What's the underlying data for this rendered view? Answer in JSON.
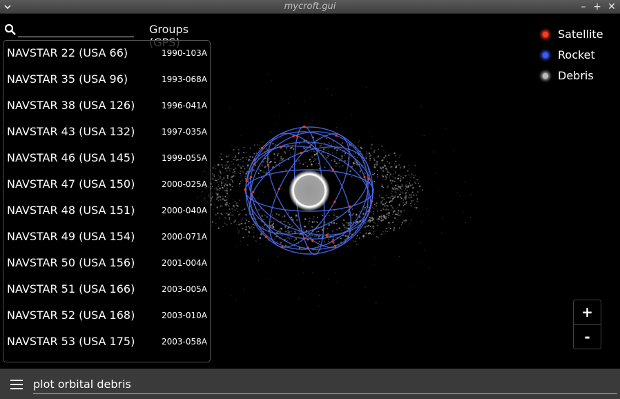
{
  "window": {
    "title": "mycroft.gui",
    "menu_icon": "chevron-down-icon",
    "minimize_glyph": "–",
    "maximize_glyph": "+",
    "close_glyph": "✕"
  },
  "search": {
    "value": "",
    "placeholder": "",
    "icon": "search-icon"
  },
  "group_label": "Groups (GPS)",
  "satellites": [
    {
      "name": "NAVSTAR 22 (USA 66)",
      "id": "1990-103A"
    },
    {
      "name": "NAVSTAR 35 (USA 96)",
      "id": "1993-068A"
    },
    {
      "name": "NAVSTAR 38 (USA 126)",
      "id": "1996-041A"
    },
    {
      "name": "NAVSTAR 43 (USA 132)",
      "id": "1997-035A"
    },
    {
      "name": "NAVSTAR 46 (USA 145)",
      "id": "1999-055A"
    },
    {
      "name": "NAVSTAR 47 (USA 150)",
      "id": "2000-025A"
    },
    {
      "name": "NAVSTAR 48 (USA 151)",
      "id": "2000-040A"
    },
    {
      "name": "NAVSTAR 49 (USA 154)",
      "id": "2000-071A"
    },
    {
      "name": "NAVSTAR 50 (USA 156)",
      "id": "2001-004A"
    },
    {
      "name": "NAVSTAR 51 (USA 166)",
      "id": "2003-005A"
    },
    {
      "name": "NAVSTAR 52 (USA 168)",
      "id": "2003-010A"
    },
    {
      "name": "NAVSTAR 53 (USA 175)",
      "id": "2003-058A"
    }
  ],
  "legend": [
    {
      "label": "Satellite",
      "color": "#ff3b1f"
    },
    {
      "label": "Rocket",
      "color": "#3a5cff"
    },
    {
      "label": "Debris",
      "color": "#bbbbbb"
    }
  ],
  "zoom": {
    "in_label": "+",
    "out_label": "-"
  },
  "colors": {
    "orbit": "#4a6cf0",
    "earth": "#d8d8d8",
    "debris": "#9a9a9a"
  },
  "command": {
    "value": "plot orbital debris",
    "menu_icon": "hamburger-menu-icon"
  }
}
